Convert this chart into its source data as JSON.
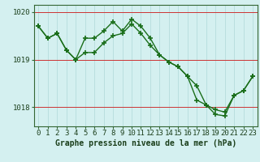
{
  "line1_x": [
    0,
    1,
    2,
    3,
    4,
    5,
    6,
    7,
    8,
    9,
    10,
    11,
    12,
    13,
    14,
    15,
    16,
    17,
    18,
    19,
    20,
    21,
    22,
    23
  ],
  "line1_y": [
    1019.7,
    1019.45,
    1019.55,
    1019.2,
    1019.0,
    1019.15,
    1019.15,
    1019.35,
    1019.5,
    1019.55,
    1019.75,
    1019.55,
    1019.3,
    1019.1,
    1018.95,
    1018.85,
    1018.65,
    1018.45,
    1018.05,
    1017.95,
    1017.9,
    1018.25,
    1018.35,
    1018.65
  ],
  "line2_x": [
    0,
    1,
    2,
    3,
    4,
    5,
    6,
    7,
    8,
    9,
    10,
    11,
    12,
    13,
    14,
    15,
    16,
    17,
    18,
    19,
    20,
    21,
    22,
    23
  ],
  "line2_y": [
    1019.7,
    1019.45,
    1019.55,
    1019.2,
    1019.0,
    1019.45,
    1019.45,
    1019.6,
    1019.8,
    1019.6,
    1019.85,
    1019.7,
    1019.45,
    1019.1,
    1018.95,
    1018.85,
    1018.65,
    1018.15,
    1018.05,
    1017.85,
    1017.82,
    1018.25,
    1018.35,
    1018.65
  ],
  "ylim": [
    1017.6,
    1020.15
  ],
  "yticks": [
    1018.0,
    1019.0,
    1020.0
  ],
  "ytick_labels": [
    "1018",
    "1019",
    "1020"
  ],
  "xticks": [
    0,
    1,
    2,
    3,
    4,
    5,
    6,
    7,
    8,
    9,
    10,
    11,
    12,
    13,
    14,
    15,
    16,
    17,
    18,
    19,
    20,
    21,
    22,
    23
  ],
  "line_color": "#1a6e1a",
  "marker": "+",
  "markersize": 4,
  "markeredgewidth": 1.2,
  "linewidth": 1.0,
  "bg_color": "#d4f0f0",
  "grid_color_h": "#cc3333",
  "grid_color_v": "#b0d8d8",
  "xlabel": "Graphe pression niveau de la mer (hPa)",
  "xlabel_fontsize": 7.0,
  "tick_fontsize": 6.5,
  "fig_width": 3.2,
  "fig_height": 2.0,
  "dpi": 100
}
